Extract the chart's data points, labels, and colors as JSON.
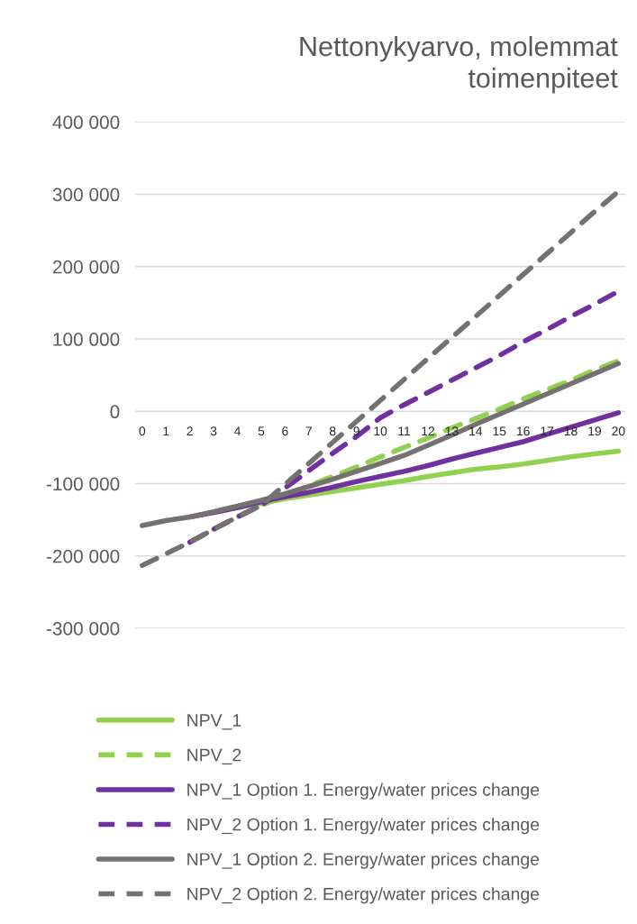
{
  "chart_data": {
    "type": "line",
    "title": "Nettonykyarvo, molemmat\ntoimenpiteet",
    "categories": [
      "0",
      "1",
      "2",
      "3",
      "4",
      "5",
      "6",
      "7",
      "8",
      "9",
      "10",
      "11",
      "12",
      "13",
      "14",
      "15",
      "16",
      "17",
      "18",
      "19",
      "20"
    ],
    "series": [
      {
        "name": "NPV_1",
        "color": "#92d050",
        "line_style": "solid",
        "values": [
          null,
          null,
          null,
          -140000,
          -133000,
          -127000,
          -121000,
          -116000,
          -111000,
          -106000,
          -101000,
          -96000,
          -90000,
          -85000,
          -80000,
          -77000,
          -73000,
          -68000,
          -63000,
          -59000,
          -55000
        ]
      },
      {
        "name": "NPV_2",
        "color": "#92d050",
        "line_style": "dashed",
        "values": [
          null,
          null,
          null,
          -163000,
          -146000,
          -130000,
          -117000,
          -103000,
          -90000,
          -77000,
          -63000,
          -50000,
          -37000,
          -23000,
          -10000,
          3000,
          17000,
          30000,
          43000,
          57000,
          70000
        ]
      },
      {
        "name": "NPV_1 Option 1. Energy/water prices change",
        "color": "#7030a0",
        "line_style": "solid",
        "values": [
          null,
          null,
          -146000,
          -140000,
          -133000,
          -125000,
          -118000,
          -112000,
          -105000,
          -97000,
          -90000,
          -83000,
          -75000,
          -66000,
          -58000,
          -50000,
          -42000,
          -32000,
          -22000,
          -12000,
          -2000
        ]
      },
      {
        "name": "NPV_2 Option 1. Energy/water prices change",
        "color": "#7030a0",
        "line_style": "dashed",
        "values": [
          null,
          null,
          -181000,
          -163000,
          -146000,
          -130000,
          -106000,
          -82000,
          -58000,
          -35000,
          -9000,
          9000,
          26000,
          43000,
          60000,
          77000,
          96000,
          113000,
          131000,
          148000,
          166000
        ]
      },
      {
        "name": "NPV_1 Option 2. Energy/water prices change",
        "color": "#767171",
        "line_style": "solid",
        "values": [
          -158000,
          -151000,
          -146000,
          -139000,
          -131000,
          -123000,
          -114000,
          -104000,
          -94000,
          -83000,
          -72000,
          -61000,
          -47000,
          -33000,
          -18000,
          -4000,
          10000,
          24000,
          38000,
          52000,
          66000
        ]
      },
      {
        "name": "NPV_2 Option 2. Energy/water prices change",
        "color": "#767171",
        "line_style": "dashed",
        "values": [
          -213000,
          -197000,
          -181000,
          -163000,
          -146000,
          -130000,
          -101000,
          -72000,
          -43000,
          -14000,
          15000,
          44000,
          73000,
          102000,
          131000,
          160000,
          189000,
          218000,
          247000,
          276000,
          304000
        ]
      }
    ],
    "ylim": [
      -300000,
      400000
    ],
    "yticks": [
      {
        "value": -300000,
        "label": "-300 000"
      },
      {
        "value": -200000,
        "label": "-200 000"
      },
      {
        "value": -100000,
        "label": "-100 000"
      },
      {
        "value": 0,
        "label": "0"
      },
      {
        "value": 100000,
        "label": "100 000"
      },
      {
        "value": 200000,
        "label": "200 000"
      },
      {
        "value": 300000,
        "label": "300 000"
      },
      {
        "value": 400000,
        "label": "400 000"
      }
    ],
    "grid": "y",
    "legend": "bottom"
  }
}
